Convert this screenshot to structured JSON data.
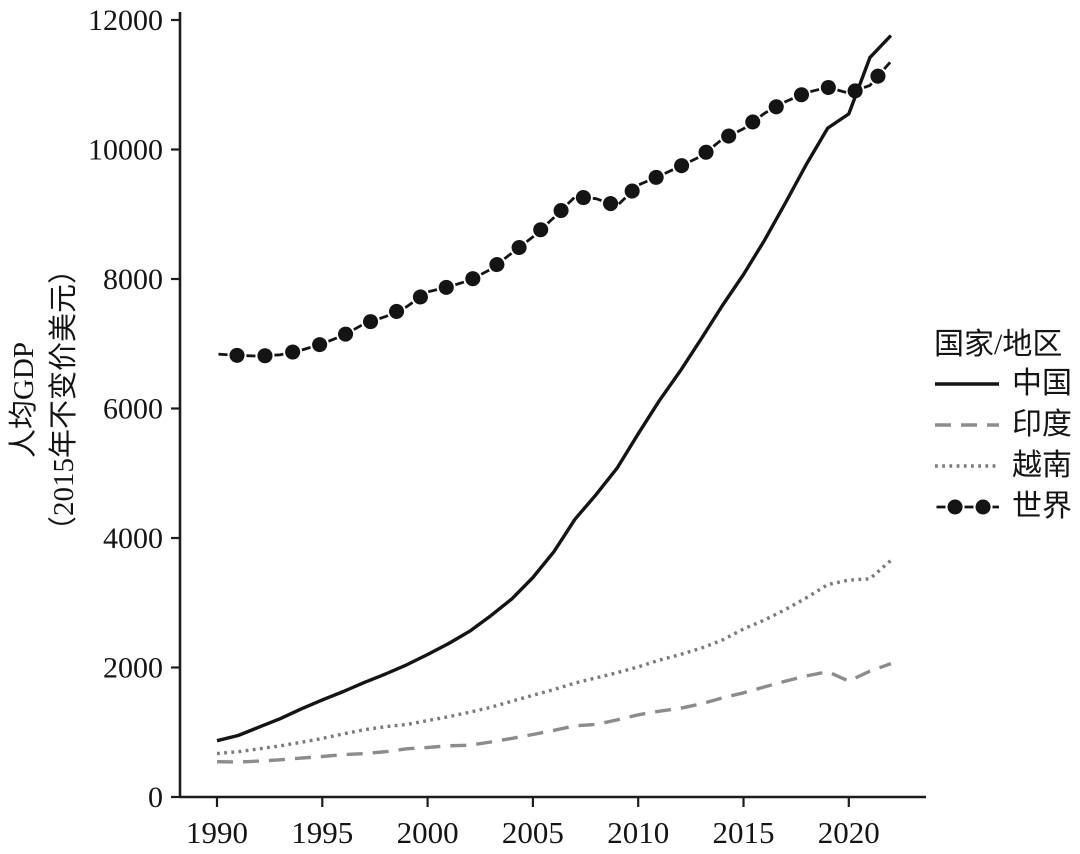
{
  "figure": {
    "y_axis_title_line1": "人均GDP",
    "y_axis_title_line2": "（2015年不变价美元）",
    "legend_title": "国家/地区"
  },
  "chart_data": {
    "type": "line",
    "title": "",
    "xlabel": "",
    "ylabel": "人均GDP（2015年不变价美元）",
    "legend_title": "国家/地区",
    "legend_position": "right-center",
    "grid": false,
    "xlim": [
      1988.2,
      2023.7
    ],
    "ylim": [
      0,
      12000
    ],
    "xticks": [
      1990,
      1995,
      2000,
      2005,
      2010,
      2015,
      2020
    ],
    "yticks": [
      0,
      2000,
      4000,
      6000,
      8000,
      10000,
      12000
    ],
    "x": [
      1990,
      1991,
      1992,
      1993,
      1994,
      1995,
      1996,
      1997,
      1998,
      1999,
      2000,
      2001,
      2002,
      2003,
      2004,
      2005,
      2006,
      2007,
      2008,
      2009,
      2010,
      2011,
      2012,
      2013,
      2014,
      2015,
      2016,
      2017,
      2018,
      2019,
      2020,
      2021,
      2022
    ],
    "series": [
      {
        "key": "china",
        "name": "中国",
        "line_style": "solid",
        "color": "#141414",
        "values": [
          870,
          950,
          1080,
          1210,
          1360,
          1500,
          1630,
          1770,
          1900,
          2040,
          2200,
          2370,
          2560,
          2800,
          3060,
          3390,
          3790,
          4290,
          4670,
          5080,
          5610,
          6120,
          6580,
          7080,
          7590,
          8070,
          8600,
          9180,
          9780,
          10330,
          10550,
          11420,
          11760
        ]
      },
      {
        "key": "india",
        "name": "印度",
        "line_style": "dashed",
        "color": "#8c8c8c",
        "values": [
          545,
          540,
          555,
          575,
          600,
          625,
          655,
          670,
          700,
          745,
          765,
          790,
          800,
          850,
          905,
          965,
          1030,
          1100,
          1120,
          1190,
          1270,
          1325,
          1370,
          1440,
          1530,
          1610,
          1700,
          1790,
          1870,
          1935,
          1790,
          1945,
          2060
        ]
      },
      {
        "key": "vietnam",
        "name": "越南",
        "line_style": "dotted",
        "color": "#7a7a7a",
        "values": [
          670,
          700,
          745,
          790,
          845,
          905,
          975,
          1040,
          1085,
          1120,
          1180,
          1240,
          1310,
          1385,
          1480,
          1570,
          1660,
          1760,
          1840,
          1920,
          2010,
          2115,
          2200,
          2300,
          2425,
          2595,
          2735,
          2895,
          3080,
          3280,
          3350,
          3370,
          3655
        ]
      },
      {
        "key": "world",
        "name": "世界",
        "line_style": "dash-dot-markers",
        "color": "#141414",
        "values": [
          6840,
          6820,
          6810,
          6830,
          6900,
          7000,
          7130,
          7310,
          7420,
          7570,
          7800,
          7880,
          7980,
          8150,
          8400,
          8650,
          8950,
          9270,
          9240,
          9130,
          9450,
          9590,
          9740,
          9900,
          10160,
          10320,
          10560,
          10740,
          10880,
          10960,
          10870,
          10990,
          11360
        ]
      }
    ]
  }
}
